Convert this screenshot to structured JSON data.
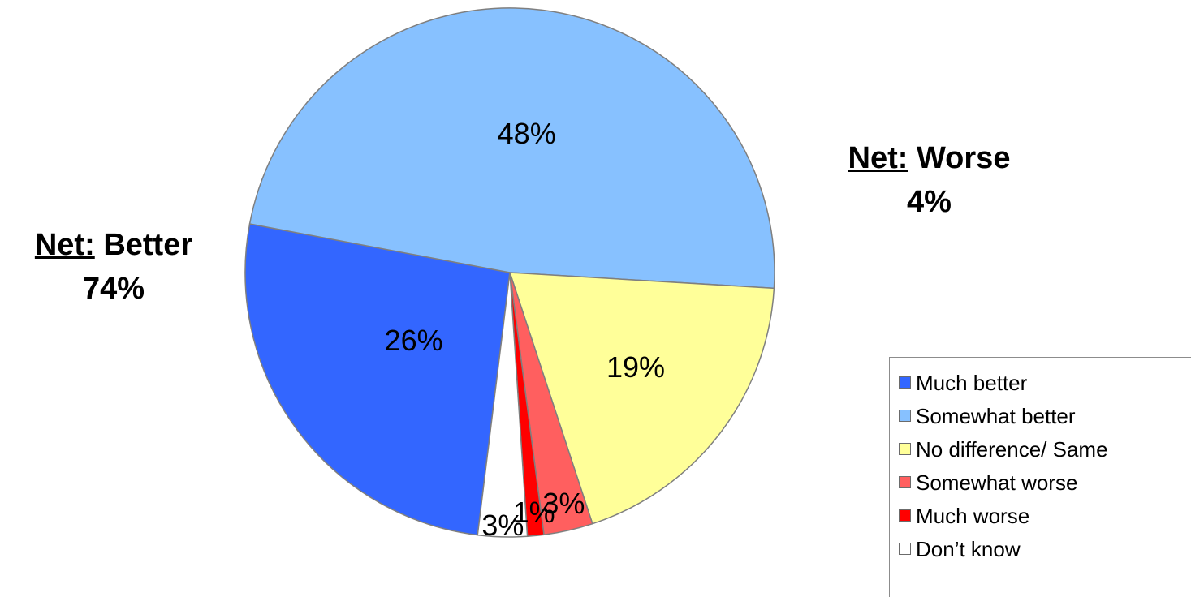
{
  "chart_data": {
    "type": "pie",
    "title": "",
    "slices": [
      {
        "label": "Much better",
        "value": 26,
        "display": "26%",
        "color": "#3366FF"
      },
      {
        "label": "Somewhat better",
        "value": 48,
        "display": "48%",
        "color": "#87C1FF"
      },
      {
        "label": "No difference/ Same",
        "value": 19,
        "display": "19%",
        "color": "#FFFF99"
      },
      {
        "label": "Somewhat worse",
        "value": 3,
        "display": "3%",
        "color": "#FF5F5F"
      },
      {
        "label": "Much worse",
        "value": 1,
        "display": "1%",
        "color": "#FF0000"
      },
      {
        "label": "Don’t know",
        "value": 3,
        "display": "3%",
        "color": "#FFFFFF"
      }
    ],
    "legend_position": "bottom-right"
  },
  "annotations": {
    "net_better": {
      "label": "Net:",
      "text": "Better",
      "value": "74%"
    },
    "net_worse": {
      "label": "Net:",
      "text": "Worse",
      "value": "4%"
    }
  }
}
